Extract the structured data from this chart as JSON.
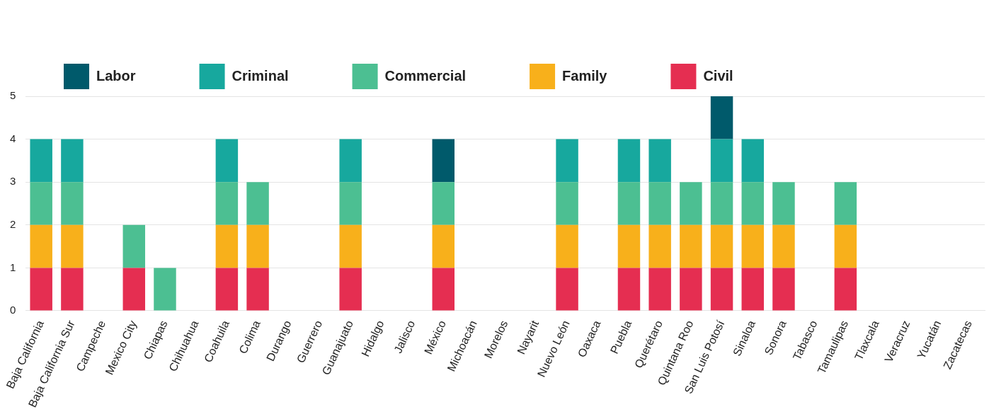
{
  "chart_data": {
    "type": "bar",
    "stacked": true,
    "legend": "top left",
    "grid": "y",
    "categories": [
      "Baja California",
      "Baja California Sur",
      "Campeche",
      "Mexico City",
      "Chiapas",
      "Chihuahua",
      "Coahuila",
      "Colima",
      "Durango",
      "Guerrero",
      "Guanajuato",
      "Hidalgo",
      "Jalisco",
      "México",
      "Michoacán",
      "Morelos",
      "Nayarit",
      "Nuevo León",
      "Oaxaca",
      "Puebla",
      "Querétaro",
      "Quintana Roo",
      "San Luis Potosí",
      "Sinaloa",
      "Sonora",
      "Tabasco",
      "Tamaulipas",
      "Tlaxcala",
      "Veracruz",
      "Yucatán",
      "Zacatecas"
    ],
    "series": [
      {
        "name": "Civil",
        "color": "#e52e51",
        "values": [
          1,
          1,
          0,
          1,
          0,
          0,
          1,
          1,
          0,
          0,
          1,
          0,
          0,
          1,
          0,
          0,
          0,
          1,
          0,
          1,
          1,
          1,
          1,
          1,
          1,
          0,
          1,
          0,
          0,
          0,
          0
        ]
      },
      {
        "name": "Family",
        "color": "#f8b01b",
        "values": [
          1,
          1,
          0,
          0,
          0,
          0,
          1,
          1,
          0,
          0,
          1,
          0,
          0,
          1,
          0,
          0,
          0,
          1,
          0,
          1,
          1,
          1,
          1,
          1,
          1,
          0,
          1,
          0,
          0,
          0,
          0
        ]
      },
      {
        "name": "Commercial",
        "color": "#4cbf92",
        "values": [
          1,
          1,
          0,
          1,
          1,
          0,
          1,
          1,
          0,
          0,
          1,
          0,
          0,
          1,
          0,
          0,
          0,
          1,
          0,
          1,
          1,
          1,
          1,
          1,
          1,
          0,
          1,
          0,
          0,
          0,
          0
        ]
      },
      {
        "name": "Criminal",
        "color": "#17a89e",
        "values": [
          1,
          1,
          0,
          0,
          0,
          0,
          1,
          0,
          0,
          0,
          1,
          0,
          0,
          0,
          0,
          0,
          0,
          1,
          0,
          1,
          1,
          0,
          1,
          1,
          0,
          0,
          0,
          0,
          0,
          0,
          0
        ]
      },
      {
        "name": "Labor",
        "color": "#005a6b",
        "values": [
          0,
          0,
          0,
          0,
          0,
          0,
          0,
          0,
          0,
          0,
          0,
          0,
          0,
          1,
          0,
          0,
          0,
          0,
          0,
          0,
          0,
          0,
          1,
          0,
          0,
          0,
          0,
          0,
          0,
          0,
          0
        ]
      }
    ],
    "ylim": [
      0,
      5
    ],
    "yticks": [
      0,
      1,
      2,
      3,
      4,
      5
    ]
  }
}
